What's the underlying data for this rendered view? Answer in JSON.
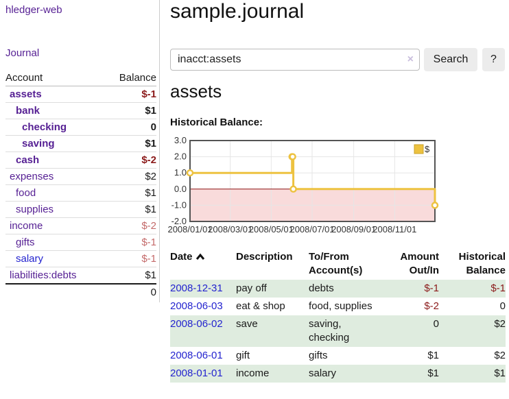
{
  "app": {
    "brand": "hledger-web",
    "nav_journal": "Journal"
  },
  "sidebar": {
    "accounts_header": {
      "account": "Account",
      "balance": "Balance"
    },
    "accounts": [
      {
        "name": "assets",
        "depth": 1,
        "balance": "$-1",
        "bold": true,
        "balance_bold": true,
        "negative": "strong"
      },
      {
        "name": "bank",
        "depth": 2,
        "balance": "$1",
        "bold": true,
        "balance_bold": true
      },
      {
        "name": "checking",
        "depth": 3,
        "balance": "0",
        "bold": true,
        "balance_bold": true
      },
      {
        "name": "saving",
        "depth": 3,
        "balance": "$1",
        "bold": true,
        "balance_bold": true
      },
      {
        "name": "cash",
        "depth": 2,
        "balance": "$-2",
        "bold": true,
        "balance_bold": true,
        "negative": "strong"
      },
      {
        "name": "expenses",
        "depth": 1,
        "balance": "$2"
      },
      {
        "name": "food",
        "depth": 2,
        "balance": "$1"
      },
      {
        "name": "supplies",
        "depth": 2,
        "balance": "$1"
      },
      {
        "name": "income",
        "depth": 1,
        "balance": "$-2",
        "negative": "soft"
      },
      {
        "name": "gifts",
        "depth": 2,
        "balance": "$-1",
        "negative": "soft"
      },
      {
        "name": "salary",
        "depth": 2,
        "balance": "$-1",
        "negative": "soft",
        "link_color": "blue"
      },
      {
        "name": "liabilities:debts",
        "depth": 1,
        "balance": "$1"
      }
    ],
    "total": "0"
  },
  "header": {
    "title": "sample.journal"
  },
  "search": {
    "query": "inacct:assets",
    "clear_icon": "×",
    "button": "Search",
    "help_button": "?"
  },
  "account_page": {
    "heading": "assets",
    "chart_label": "Historical Balance:"
  },
  "chart_data": {
    "type": "line",
    "step": true,
    "title": "Historical Balance:",
    "series": [
      {
        "name": "$",
        "color": "#edc240",
        "points": [
          [
            "2008-01-01",
            1
          ],
          [
            "2008-06-01",
            2
          ],
          [
            "2008-06-02",
            2
          ],
          [
            "2008-06-03",
            0
          ],
          [
            "2008-12-31",
            -1
          ]
        ]
      }
    ],
    "xlim": [
      "2008-01-01",
      "2008-12-31"
    ],
    "ylim": [
      -2,
      3
    ],
    "yticks": [
      3,
      2,
      1,
      0,
      -1,
      -2
    ],
    "xticks": [
      "2008/01/01",
      "2008/03/01",
      "2008/05/01",
      "2008/07/01",
      "2008/09/01",
      "2008/11/01"
    ],
    "grid": true,
    "legend_position": "top-right",
    "negative_region_fill": "#f9dbdb",
    "zero_line_color": "#8c1111",
    "frame_color": "#545454",
    "gridline_color": "#e6e6e6"
  },
  "register": {
    "columns": [
      {
        "label": "Date",
        "sorted": "ascending"
      },
      {
        "label": "Description"
      },
      {
        "label": "To/From Account(s)"
      },
      {
        "label": "Amount Out/In",
        "align": "right"
      },
      {
        "label": "Historical Balance",
        "align": "right"
      }
    ],
    "rows": [
      {
        "date": "2008-12-31",
        "description": "pay off",
        "accounts": "debts",
        "amount": "$-1",
        "amount_negative": true,
        "balance": "$-1",
        "balance_negative": true
      },
      {
        "date": "2008-06-03",
        "description": "eat & shop",
        "accounts": "food, supplies",
        "amount": "$-2",
        "amount_negative": true,
        "balance": "0",
        "balance_negative": false
      },
      {
        "date": "2008-06-02",
        "description": "save",
        "accounts": "saving, checking",
        "amount": "0",
        "amount_negative": false,
        "balance": "$2",
        "balance_negative": false
      },
      {
        "date": "2008-06-01",
        "description": "gift",
        "accounts": "gifts",
        "amount": "$1",
        "amount_negative": false,
        "balance": "$2",
        "balance_negative": false
      },
      {
        "date": "2008-01-01",
        "description": "income",
        "accounts": "salary",
        "amount": "$1",
        "amount_negative": false,
        "balance": "$1",
        "balance_negative": false
      }
    ]
  }
}
